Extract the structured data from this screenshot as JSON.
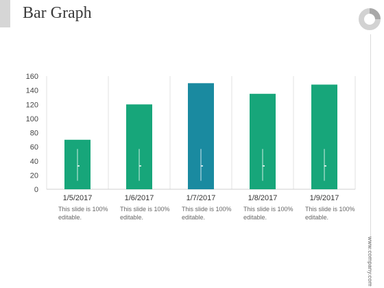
{
  "page": {
    "title": "Bar Graph",
    "website": "www.company.com",
    "accent_color": "#d6d6d6"
  },
  "chart_data": {
    "type": "bar",
    "title": "",
    "xlabel": "",
    "ylabel": "",
    "categories": [
      "1/5/2017",
      "1/6/2017",
      "1/7/2017",
      "1/8/2017",
      "1/9/2017"
    ],
    "values": [
      70,
      120,
      150,
      135,
      148
    ],
    "ylim": [
      0,
      160
    ],
    "yticks": [
      0,
      20,
      40,
      60,
      80,
      100,
      120,
      140,
      160
    ],
    "grid": "vertical separators between categories",
    "bar_colors": [
      "#17a67a",
      "#17a67a",
      "#1a8aa0",
      "#17a67a",
      "#17a67a"
    ],
    "captions": [
      "This slide is 100% editable.",
      "This slide is 100% editable.",
      "This slide is 100% editable.",
      "This slide is 100% editable.",
      "This slide is 100% editable."
    ]
  }
}
